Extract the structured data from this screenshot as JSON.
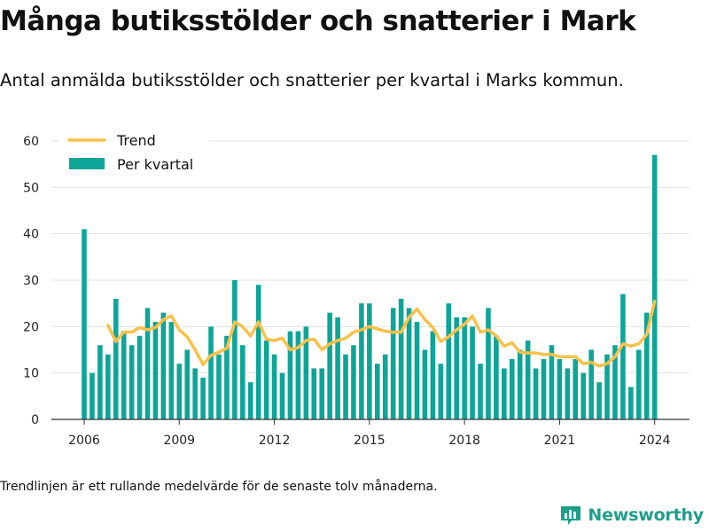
{
  "title": "Många butiksstölder och snatterier i Mark",
  "subtitle": "Antal anmälda butiksstölder och snatterier per kvartal i Marks kommun.",
  "footnote": "Trendlinjen är ett rullande medelvärde för de senaste tolv månaderna.",
  "brand": {
    "name": "Newsworthy",
    "icon": "bar-chart-logo-icon"
  },
  "colors": {
    "bars": "#0da597",
    "trend": "#f8c14a",
    "grid": "#e2e2e2",
    "axis": "#333333",
    "brand": "#1f9e8c"
  },
  "chart_data": {
    "type": "bar",
    "x_start": "2006 Q1",
    "xticks": [
      "2006",
      "2009",
      "2012",
      "2015",
      "2018",
      "2021",
      "2024"
    ],
    "yticks": [
      "0",
      "10",
      "20",
      "30",
      "40",
      "50",
      "60"
    ],
    "ylim": [
      0,
      60
    ],
    "grid": true,
    "legend_position": "top-left",
    "series": [
      {
        "name": "Per kvartal",
        "type": "bar",
        "values": [
          41,
          10,
          16,
          14,
          26,
          19,
          16,
          18,
          24,
          21,
          23,
          21,
          12,
          15,
          11,
          9,
          20,
          14,
          18,
          30,
          16,
          8,
          29,
          17,
          14,
          10,
          19,
          19,
          20,
          11,
          11,
          23,
          22,
          14,
          16,
          25,
          25,
          12,
          14,
          24,
          26,
          24,
          21,
          15,
          19,
          12,
          25,
          22,
          22,
          20,
          12,
          24,
          18,
          11,
          13,
          15,
          17,
          11,
          13,
          16,
          13,
          11,
          13,
          10,
          15,
          8,
          14,
          16,
          27,
          7,
          15,
          23,
          57
        ]
      },
      {
        "name": "Trend",
        "type": "line",
        "values": [
          null,
          null,
          null,
          20.3,
          16.8,
          18.8,
          18.8,
          19.8,
          19.3,
          19.8,
          21.5,
          22.3,
          19.3,
          17.8,
          15,
          11.8,
          13.8,
          14.5,
          15.3,
          21,
          20,
          18,
          21,
          17.3,
          17,
          17.5,
          15,
          15.5,
          17,
          17.3,
          15,
          16.3,
          17,
          17.5,
          18.8,
          19.3,
          20,
          19.5,
          19,
          18.8,
          18.8,
          22,
          23.8,
          21.5,
          19.8,
          16.8,
          17.8,
          19.3,
          20.5,
          22.3,
          18.8,
          19.3,
          18,
          15.8,
          16.5,
          14.5,
          14.3,
          14.3,
          14,
          14,
          13.5,
          13.5,
          13.5,
          12,
          12.3,
          11.5,
          12,
          13.5,
          16.3,
          15.8,
          16.3,
          18.3,
          25.5
        ]
      }
    ]
  }
}
